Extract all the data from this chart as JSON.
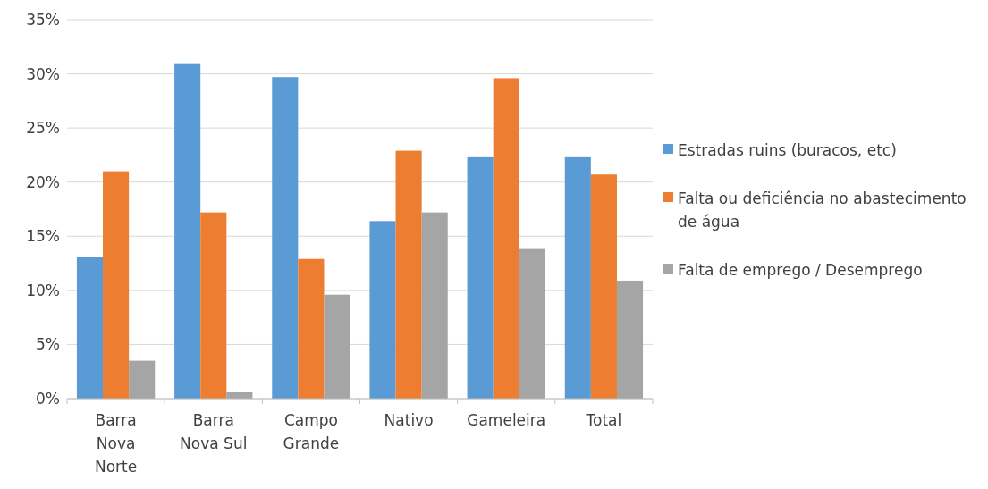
{
  "chart_data": {
    "type": "bar",
    "categories": [
      "Barra Nova Norte",
      "Barra Nova Sul",
      "Campo Grande",
      "Nativo",
      "Gameleira",
      "Total"
    ],
    "series": [
      {
        "name": "Estradas ruins (buracos, etc)",
        "color": "#5b9bd5",
        "values": [
          13.1,
          30.9,
          29.7,
          16.4,
          22.3,
          22.3
        ]
      },
      {
        "name": "Falta ou deficiência no abastecimento de água",
        "color": "#ed7d31",
        "values": [
          21.0,
          17.2,
          12.9,
          22.9,
          29.6,
          20.7
        ]
      },
      {
        "name": "Falta de emprego / Desemprego",
        "color": "#a5a5a5",
        "values": [
          3.5,
          0.6,
          9.6,
          17.2,
          13.9,
          10.9
        ]
      }
    ],
    "ylim": [
      0,
      35
    ],
    "yticks": [
      {
        "value": 0,
        "label": "0%"
      },
      {
        "value": 5,
        "label": "5%"
      },
      {
        "value": 10,
        "label": "10%"
      },
      {
        "value": 15,
        "label": "15%"
      },
      {
        "value": 20,
        "label": "20%"
      },
      {
        "value": 25,
        "label": "25%"
      },
      {
        "value": 30,
        "label": "30%"
      },
      {
        "value": 35,
        "label": "35%"
      }
    ],
    "grid": "y",
    "legend": "right"
  }
}
